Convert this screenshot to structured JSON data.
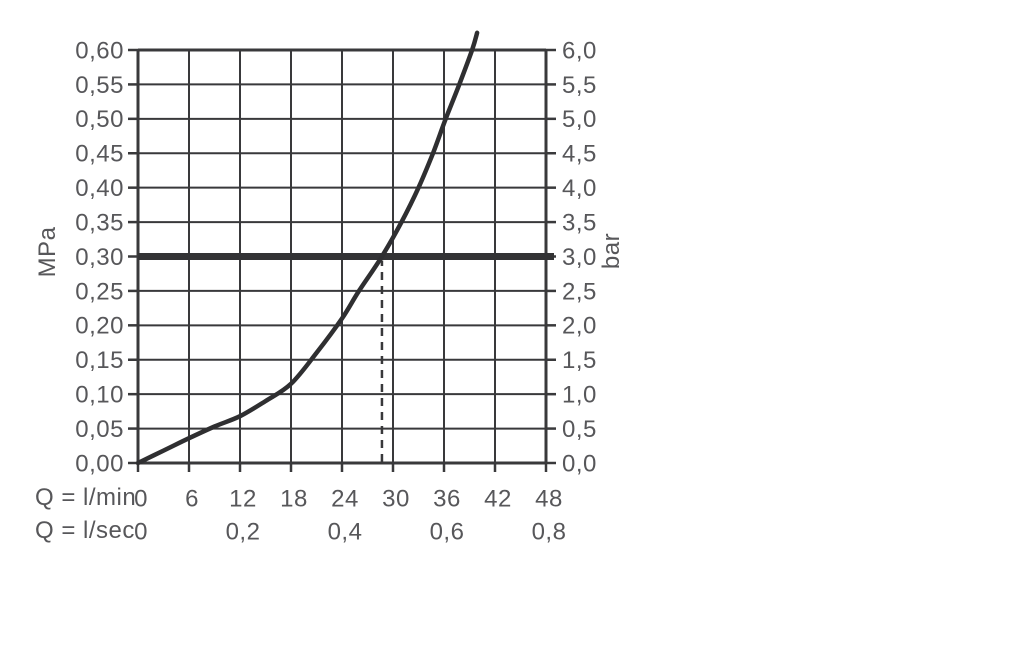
{
  "page": {
    "background": "#ffffff"
  },
  "colors": {
    "grid": "#39393b",
    "border": "#333335",
    "text": "#57575a",
    "curve": "#2f2f31",
    "reference_line": "#333335",
    "dashed_line": "#39393b"
  },
  "axis_unit_labels": {
    "left": "MPa",
    "right": "bar",
    "bottom_primary": "Q = l/min",
    "bottom_secondary": "Q = l/sec"
  },
  "chart_data": {
    "type": "line",
    "title": "",
    "grid": true,
    "legend": false,
    "x_axis": {
      "primary_label": "Q = l/min",
      "secondary_label": "Q = l/sec",
      "range_lmin": [
        0,
        48
      ],
      "ticks_lmin": {
        "values": [
          0,
          6,
          12,
          18,
          24,
          30,
          36,
          42,
          48
        ],
        "labels": [
          "0",
          "6",
          "12",
          "18",
          "24",
          "30",
          "36",
          "42",
          "48"
        ]
      },
      "ticks_lsec": {
        "values_lmin": [
          0,
          12,
          24,
          36,
          48
        ],
        "labels": [
          "0",
          "0,2",
          "0,4",
          "0,6",
          "0,8"
        ]
      }
    },
    "y_axis_left": {
      "unit": "MPa",
      "range": [
        0,
        0.6
      ],
      "tick_values": [
        0,
        0.05,
        0.1,
        0.15,
        0.2,
        0.25,
        0.3,
        0.35,
        0.4,
        0.45,
        0.5,
        0.55,
        0.6
      ],
      "tick_labels": [
        "0,00",
        "0,05",
        "0,10",
        "0,15",
        "0,20",
        "0,25",
        "0,30",
        "0,35",
        "0,40",
        "0,45",
        "0,50",
        "0,55",
        "0,60"
      ]
    },
    "y_axis_right": {
      "unit": "bar",
      "range": [
        0,
        6
      ],
      "tick_values_mpa": [
        0,
        0.05,
        0.1,
        0.15,
        0.2,
        0.25,
        0.3,
        0.35,
        0.4,
        0.45,
        0.5,
        0.55,
        0.6
      ],
      "tick_labels": [
        "0,0",
        "0,5",
        "1,0",
        "1,5",
        "2,0",
        "2,5",
        "3,0",
        "3,5",
        "4,0",
        "4,5",
        "5,0",
        "5,5",
        "6,0"
      ]
    },
    "series": [
      {
        "name": "pressure-flow-curve",
        "points_lmin_mpa": [
          [
            0,
            0
          ],
          [
            3,
            0.018
          ],
          [
            6,
            0.036
          ],
          [
            9,
            0.053
          ],
          [
            12,
            0.068
          ],
          [
            15,
            0.09
          ],
          [
            18,
            0.115
          ],
          [
            21,
            0.16
          ],
          [
            24,
            0.21
          ],
          [
            26,
            0.25
          ],
          [
            28.7,
            0.3
          ],
          [
            31,
            0.35
          ],
          [
            33,
            0.4
          ],
          [
            34.7,
            0.45
          ],
          [
            36.2,
            0.5
          ],
          [
            37.8,
            0.55
          ],
          [
            39.3,
            0.6
          ],
          [
            39.9,
            0.625
          ]
        ]
      }
    ],
    "reference_line_mpa": 0.3,
    "dashed_marker_lmin": 28.7
  }
}
